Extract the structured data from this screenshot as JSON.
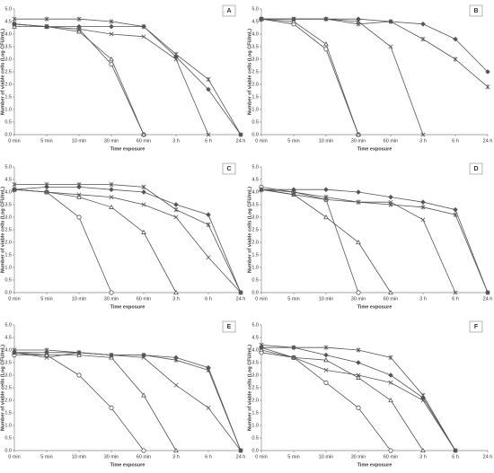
{
  "chart_data": [
    {
      "type": "line",
      "label": "A",
      "x_label": "Time exposure",
      "y_label": "Number of viable cells (Log CFU/mL)",
      "color": "#555555",
      "categories": [
        "0 min",
        "5 min",
        "10 min",
        "30 min",
        "60 min",
        "3 h",
        "6 h",
        "24 h"
      ],
      "ylim": [
        0,
        5
      ],
      "yticks": [
        {
          "value": 0,
          "label": "0.0"
        },
        {
          "value": 0.5,
          "label": "0.5"
        },
        {
          "value": 1,
          "label": "1.0"
        },
        {
          "value": 1.5,
          "label": "1.5"
        },
        {
          "value": 2,
          "label": "2.0"
        },
        {
          "value": 2.5,
          "label": "2.5"
        },
        {
          "value": 3,
          "label": "3.0"
        },
        {
          "value": 3.5,
          "label": "3.5"
        },
        {
          "value": 4,
          "label": "4.0"
        },
        {
          "value": 4.5,
          "label": "4.5"
        },
        {
          "value": 5,
          "label": "5.0"
        }
      ],
      "series": [
        {
          "marker": "circle",
          "values": [
            4.4,
            4.3,
            4.2,
            2.8,
            0,
            null,
            null,
            null
          ]
        },
        {
          "marker": "triangle",
          "values": [
            4.3,
            4.3,
            4.1,
            3.0,
            0,
            null,
            null,
            null
          ]
        },
        {
          "marker": "cross",
          "values": [
            4.4,
            4.3,
            4.2,
            4.0,
            3.9,
            3.0,
            0,
            null
          ]
        },
        {
          "marker": "star",
          "values": [
            4.6,
            4.6,
            4.6,
            4.5,
            4.3,
            3.2,
            2.2,
            0
          ]
        },
        {
          "marker": "diamond",
          "values": [
            4.4,
            4.3,
            4.3,
            4.3,
            4.3,
            3.1,
            1.8,
            0
          ]
        }
      ]
    },
    {
      "type": "line",
      "label": "B",
      "x_label": "Time exposure",
      "y_label": "Number of viable cells (Log CFU/mL)",
      "color": "#555555",
      "categories": [
        "0 min",
        "5 min",
        "10 min",
        "30 min",
        "60 min",
        "3 h",
        "6 h",
        "24 h"
      ],
      "ylim": [
        0,
        5
      ],
      "yticks": [
        {
          "value": 0,
          "label": "0.0"
        },
        {
          "value": 0.5,
          "label": "0.5"
        },
        {
          "value": 1,
          "label": "1.0"
        },
        {
          "value": 1.5,
          "label": "1.5"
        },
        {
          "value": 2,
          "label": "2.0"
        },
        {
          "value": 2.5,
          "label": "2.5"
        },
        {
          "value": 3,
          "label": "3.0"
        },
        {
          "value": 3.5,
          "label": "3.5"
        },
        {
          "value": 4,
          "label": "4.0"
        },
        {
          "value": 4.5,
          "label": "4.5"
        },
        {
          "value": 5,
          "label": "5.0"
        }
      ],
      "series": [
        {
          "marker": "circle",
          "values": [
            4.6,
            4.4,
            3.4,
            0,
            null,
            null,
            null,
            null
          ]
        },
        {
          "marker": "triangle",
          "values": [
            4.6,
            4.5,
            3.6,
            0,
            null,
            null,
            null,
            null
          ]
        },
        {
          "marker": "cross",
          "values": [
            4.6,
            4.6,
            4.6,
            4.5,
            3.5,
            0,
            null,
            null
          ]
        },
        {
          "marker": "star",
          "values": [
            4.6,
            4.6,
            4.6,
            4.4,
            4.5,
            3.8,
            3.0,
            1.9
          ]
        },
        {
          "marker": "diamond",
          "values": [
            4.6,
            4.6,
            4.6,
            4.6,
            4.5,
            4.4,
            3.8,
            2.5
          ]
        }
      ]
    },
    {
      "type": "line",
      "label": "C",
      "x_label": "Time exposure",
      "y_label": "Number of viable cells (Log CFU/mL)",
      "color": "#555555",
      "categories": [
        "0 min",
        "5 min",
        "10 min",
        "30 min",
        "60 min",
        "3 h",
        "6 h",
        "24 h"
      ],
      "ylim": [
        0,
        5
      ],
      "yticks": [
        {
          "value": 0,
          "label": "0.0"
        },
        {
          "value": 0.5,
          "label": "0.5"
        },
        {
          "value": 1,
          "label": "1.0"
        },
        {
          "value": 1.5,
          "label": "1.5"
        },
        {
          "value": 2,
          "label": "2.0"
        },
        {
          "value": 2.5,
          "label": "2.5"
        },
        {
          "value": 3,
          "label": "3.0"
        },
        {
          "value": 3.5,
          "label": "3.5"
        },
        {
          "value": 4,
          "label": "4.0"
        },
        {
          "value": 4.5,
          "label": "4.5"
        },
        {
          "value": 5,
          "label": "5.0"
        }
      ],
      "series": [
        {
          "marker": "circle",
          "values": [
            4.1,
            4.0,
            3.0,
            0,
            null,
            null,
            null,
            null
          ]
        },
        {
          "marker": "triangle",
          "values": [
            4.1,
            4.0,
            3.8,
            3.4,
            2.4,
            0,
            null,
            null
          ]
        },
        {
          "marker": "cross",
          "values": [
            4.1,
            4.0,
            3.9,
            3.8,
            3.5,
            3.0,
            1.4,
            0
          ]
        },
        {
          "marker": "star",
          "values": [
            4.3,
            4.3,
            4.3,
            4.3,
            4.2,
            3.3,
            2.7,
            0
          ]
        },
        {
          "marker": "diamond",
          "values": [
            4.1,
            4.2,
            4.2,
            4.1,
            4.0,
            3.5,
            3.1,
            0
          ]
        }
      ]
    },
    {
      "type": "line",
      "label": "D",
      "x_label": "Time exposure",
      "y_label": "Number of viable cells (Log CFU/mL)",
      "color": "#555555",
      "categories": [
        "0 min",
        "5 min",
        "10 min",
        "30 min",
        "60 min",
        "3 h",
        "6 h",
        "24 h"
      ],
      "ylim": [
        0,
        5
      ],
      "yticks": [
        {
          "value": 0,
          "label": "0.0"
        },
        {
          "value": 0.5,
          "label": "0.5"
        },
        {
          "value": 1,
          "label": "1.0"
        },
        {
          "value": 1.5,
          "label": "1.5"
        },
        {
          "value": 2,
          "label": "2.0"
        },
        {
          "value": 2.5,
          "label": "2.5"
        },
        {
          "value": 3,
          "label": "3.0"
        },
        {
          "value": 3.5,
          "label": "3.5"
        },
        {
          "value": 4,
          "label": "4.0"
        },
        {
          "value": 4.5,
          "label": "4.5"
        },
        {
          "value": 5,
          "label": "5.0"
        }
      ],
      "series": [
        {
          "marker": "circle",
          "values": [
            4.2,
            4.0,
            3.7,
            0,
            null,
            null,
            null,
            null
          ]
        },
        {
          "marker": "triangle",
          "values": [
            4.1,
            3.9,
            3.0,
            2.0,
            0,
            null,
            null,
            null
          ]
        },
        {
          "marker": "cross",
          "values": [
            4.1,
            3.9,
            3.7,
            3.6,
            3.6,
            2.9,
            0,
            null
          ]
        },
        {
          "marker": "star",
          "values": [
            4.1,
            4.0,
            3.8,
            3.6,
            3.5,
            3.4,
            3.1,
            0
          ]
        },
        {
          "marker": "diamond",
          "values": [
            4.1,
            4.1,
            4.1,
            4.0,
            3.8,
            3.6,
            3.3,
            0
          ]
        }
      ]
    },
    {
      "type": "line",
      "label": "E",
      "x_label": "Time exposure",
      "y_label": "Number of viable cells (Log CFU/mL)",
      "color": "#555555",
      "categories": [
        "0 min",
        "5 min",
        "10 min",
        "30 min",
        "60 min",
        "3 h",
        "6 h",
        "24 h"
      ],
      "ylim": [
        0,
        5
      ],
      "yticks": [
        {
          "value": 0,
          "label": "0.0"
        },
        {
          "value": 0.5,
          "label": "0.5"
        },
        {
          "value": 1,
          "label": "1.0"
        },
        {
          "value": 1.5,
          "label": "1.5"
        },
        {
          "value": 2,
          "label": "2.0"
        },
        {
          "value": 2.5,
          "label": "2.5"
        },
        {
          "value": 3,
          "label": "3.0"
        },
        {
          "value": 3.5,
          "label": "3.5"
        },
        {
          "value": 4,
          "label": "4.0"
        },
        {
          "value": 4.5,
          "label": "4.5"
        },
        {
          "value": 5,
          "label": "5.0"
        }
      ],
      "series": [
        {
          "marker": "circle",
          "values": [
            3.8,
            3.8,
            3.0,
            1.7,
            0,
            null,
            null,
            null
          ]
        },
        {
          "marker": "triangle",
          "values": [
            3.9,
            3.8,
            3.8,
            3.7,
            2.2,
            0,
            null,
            null
          ]
        },
        {
          "marker": "cross",
          "values": [
            3.9,
            3.7,
            3.9,
            3.8,
            3.7,
            2.6,
            1.7,
            0
          ]
        },
        {
          "marker": "star",
          "values": [
            4.0,
            4.0,
            3.9,
            3.8,
            3.8,
            3.6,
            3.2,
            0
          ]
        },
        {
          "marker": "diamond",
          "values": [
            3.9,
            3.9,
            3.9,
            3.8,
            3.8,
            3.7,
            3.3,
            0
          ]
        }
      ]
    },
    {
      "type": "line",
      "label": "F",
      "x_label": "Time exposure",
      "y_label": "Number of viable cells (Log CFU/mL)",
      "color": "#555555",
      "categories": [
        "0 min",
        "5 min",
        "10 min",
        "30 min",
        "60 min",
        "3 h",
        "6 h",
        "24 h"
      ],
      "ylim": [
        0,
        5
      ],
      "yticks": [
        {
          "value": 0,
          "label": "0.0"
        },
        {
          "value": 0.5,
          "label": "0.5"
        },
        {
          "value": 1,
          "label": "1.0"
        },
        {
          "value": 1.5,
          "label": "1.5"
        },
        {
          "value": 2,
          "label": "2.0"
        },
        {
          "value": 2.5,
          "label": "2.5"
        },
        {
          "value": 3,
          "label": "3.0"
        },
        {
          "value": 3.5,
          "label": "3.5"
        },
        {
          "value": 4,
          "label": "4.0"
        },
        {
          "value": 4.5,
          "label": "4.5"
        },
        {
          "value": 5,
          "label": "5.0"
        }
      ],
      "series": [
        {
          "marker": "circle",
          "values": [
            3.9,
            3.7,
            2.7,
            1.7,
            0,
            null,
            null,
            null
          ]
        },
        {
          "marker": "triangle",
          "values": [
            4.0,
            3.7,
            3.6,
            2.9,
            2.0,
            0,
            null,
            null
          ]
        },
        {
          "marker": "cross",
          "values": [
            4.1,
            3.7,
            3.2,
            3.0,
            2.7,
            2.0,
            0,
            null
          ]
        },
        {
          "marker": "star",
          "values": [
            4.2,
            4.1,
            4.1,
            4.0,
            3.7,
            2.2,
            0,
            null
          ]
        },
        {
          "marker": "diamond",
          "values": [
            4.1,
            4.1,
            3.8,
            3.5,
            3.0,
            2.1,
            0,
            null
          ]
        }
      ]
    }
  ]
}
